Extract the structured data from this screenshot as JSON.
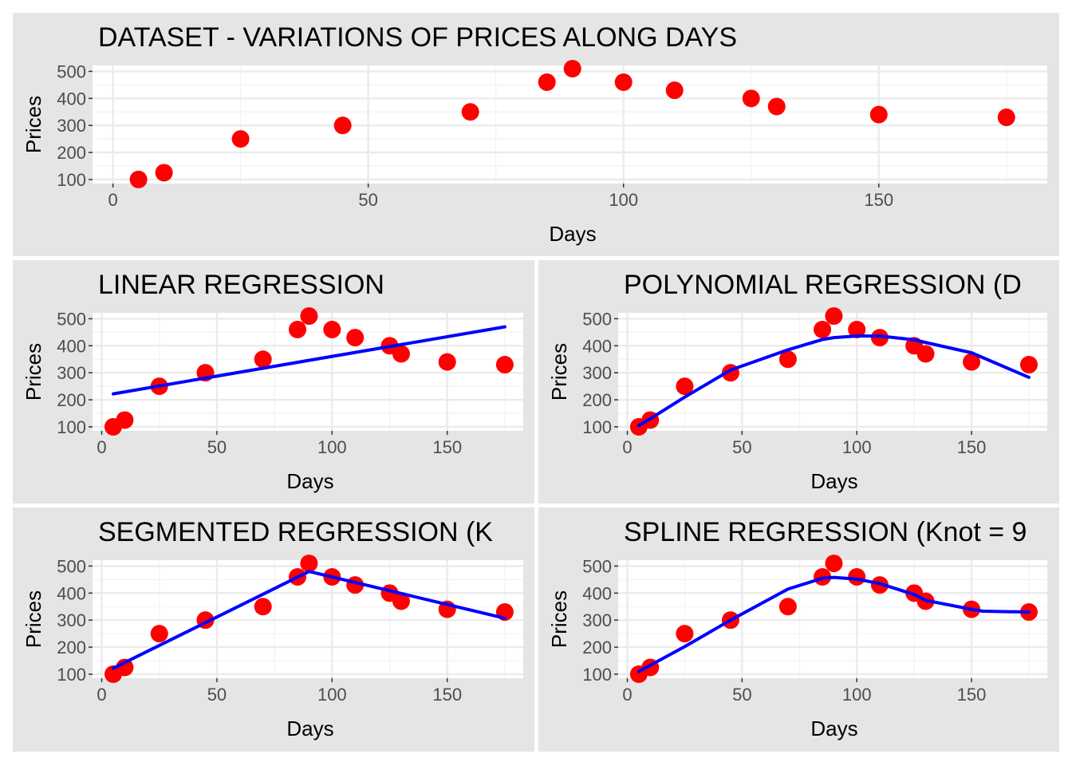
{
  "chart_data": [
    {
      "type": "scatter",
      "title": "DATASET - VARIATIONS OF PRICES ALONG DAYS",
      "xlabel": "Days",
      "ylabel": "Prices",
      "xlim": [
        -4,
        183
      ],
      "ylim": [
        85,
        522
      ],
      "xticks": [
        0,
        50,
        100,
        150
      ],
      "yticks": [
        100,
        200,
        300,
        400,
        500
      ],
      "grid": true,
      "points": {
        "x": [
          5,
          10,
          25,
          45,
          70,
          85,
          90,
          100,
          110,
          125,
          130,
          150,
          175
        ],
        "y": [
          100,
          125,
          250,
          300,
          350,
          460,
          510,
          460,
          430,
          400,
          370,
          340,
          330
        ]
      },
      "point_color": "#ff0000"
    },
    {
      "type": "line",
      "title": "LINEAR REGRESSION",
      "xlabel": "Days",
      "ylabel": "Prices",
      "xlim": [
        -4,
        183
      ],
      "ylim": [
        85,
        522
      ],
      "xticks": [
        0,
        50,
        100,
        150
      ],
      "yticks": [
        100,
        200,
        300,
        400,
        500
      ],
      "grid": true,
      "points": {
        "x": [
          5,
          10,
          25,
          45,
          70,
          85,
          90,
          100,
          110,
          125,
          130,
          150,
          175
        ],
        "y": [
          100,
          125,
          250,
          300,
          350,
          460,
          510,
          460,
          430,
          400,
          370,
          340,
          330
        ]
      },
      "fit": {
        "x": [
          5,
          175
        ],
        "y": [
          222,
          470
        ]
      },
      "point_color": "#ff0000",
      "line_color": "#0000ff"
    },
    {
      "type": "line",
      "title": "POLYNOMIAL REGRESSION (D",
      "xlabel": "Days",
      "ylabel": "Prices",
      "xlim": [
        -4,
        183
      ],
      "ylim": [
        85,
        522
      ],
      "xticks": [
        0,
        50,
        100,
        150
      ],
      "yticks": [
        100,
        200,
        300,
        400,
        500
      ],
      "grid": true,
      "points": {
        "x": [
          5,
          10,
          25,
          45,
          70,
          85,
          90,
          100,
          110,
          125,
          130,
          150,
          175
        ],
        "y": [
          100,
          125,
          250,
          300,
          350,
          460,
          510,
          460,
          430,
          400,
          370,
          340,
          330
        ]
      },
      "fit": {
        "x": [
          5,
          10,
          25,
          45,
          70,
          85,
          90,
          100,
          110,
          125,
          130,
          150,
          175
        ],
        "y": [
          105,
          130,
          210,
          310,
          385,
          423,
          430,
          436,
          436,
          422,
          412,
          374,
          283
        ]
      },
      "point_color": "#ff0000",
      "line_color": "#0000ff"
    },
    {
      "type": "line",
      "title": "SEGMENTED REGRESSION (K",
      "xlabel": "Days",
      "ylabel": "Prices",
      "xlim": [
        -4,
        183
      ],
      "ylim": [
        85,
        522
      ],
      "xticks": [
        0,
        50,
        100,
        150
      ],
      "yticks": [
        100,
        200,
        300,
        400,
        500
      ],
      "grid": true,
      "points": {
        "x": [
          5,
          10,
          25,
          45,
          70,
          85,
          90,
          100,
          110,
          125,
          130,
          150,
          175
        ],
        "y": [
          100,
          125,
          250,
          300,
          350,
          460,
          510,
          460,
          430,
          400,
          370,
          340,
          330
        ]
      },
      "fit": {
        "x": [
          5,
          90,
          175
        ],
        "y": [
          122,
          480,
          307
        ]
      },
      "point_color": "#ff0000",
      "line_color": "#0000ff"
    },
    {
      "type": "line",
      "title": "SPLINE REGRESSION (Knot = 9",
      "xlabel": "Days",
      "ylabel": "Prices",
      "xlim": [
        -4,
        183
      ],
      "ylim": [
        85,
        522
      ],
      "xticks": [
        0,
        50,
        100,
        150
      ],
      "yticks": [
        100,
        200,
        300,
        400,
        500
      ],
      "grid": true,
      "points": {
        "x": [
          5,
          10,
          25,
          45,
          70,
          85,
          90,
          100,
          110,
          125,
          130,
          150,
          175
        ],
        "y": [
          100,
          125,
          250,
          300,
          350,
          460,
          510,
          460,
          430,
          400,
          370,
          340,
          330
        ]
      },
      "fit": {
        "x": [
          5,
          10,
          25,
          45,
          70,
          85,
          90,
          100,
          110,
          125,
          130,
          150,
          155,
          175
        ],
        "y": [
          110,
          133,
          202,
          300,
          415,
          455,
          458,
          452,
          435,
          395,
          373,
          340,
          333,
          330
        ]
      },
      "point_color": "#ff0000",
      "line_color": "#0000ff"
    }
  ]
}
